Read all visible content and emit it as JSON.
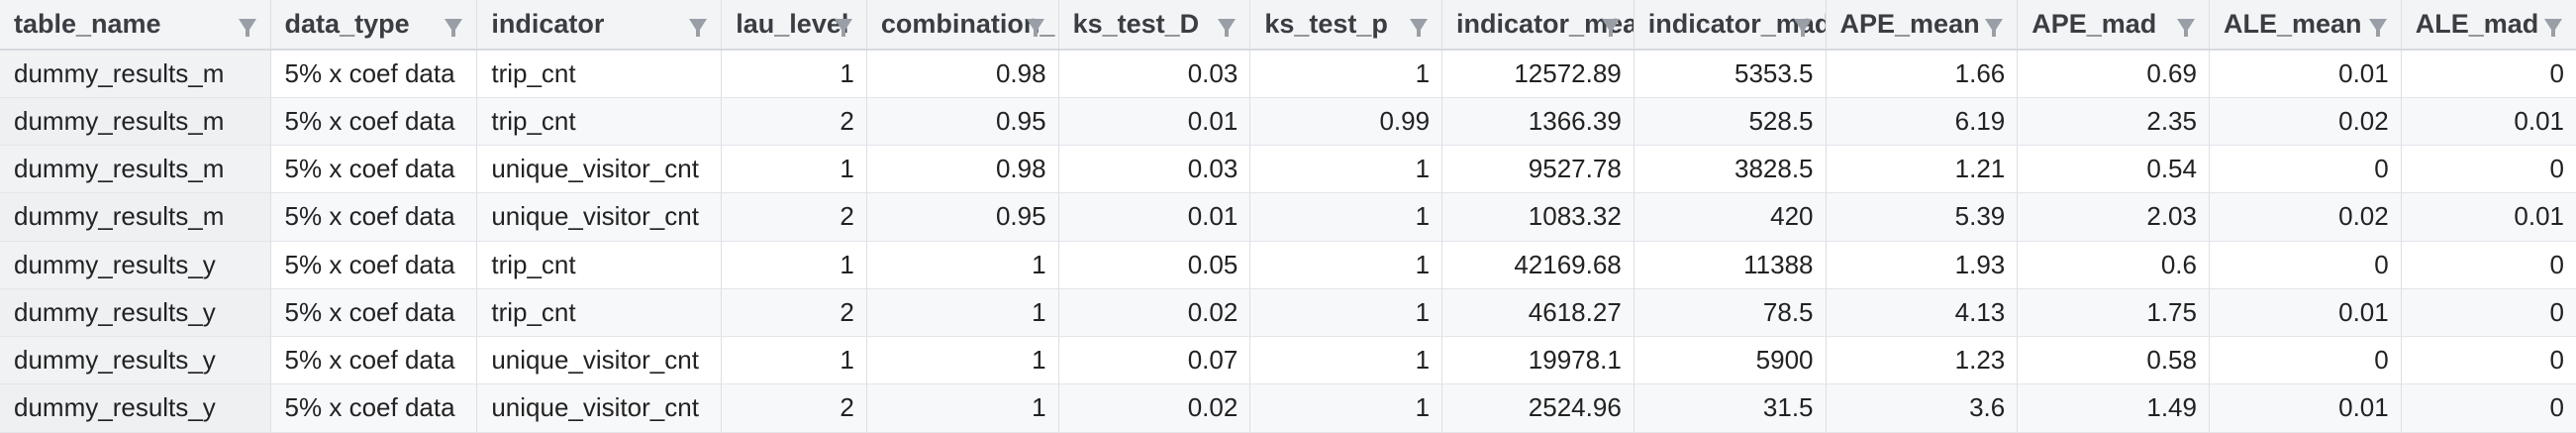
{
  "table": {
    "columns": [
      {
        "label": "table_name",
        "align": "left"
      },
      {
        "label": "data_type",
        "align": "left"
      },
      {
        "label": "indicator",
        "align": "left"
      },
      {
        "label": "lau_level",
        "align": "right"
      },
      {
        "label": "combination_",
        "align": "right"
      },
      {
        "label": "ks_test_D",
        "align": "right"
      },
      {
        "label": "ks_test_p",
        "align": "right"
      },
      {
        "label": "indicator_mea",
        "align": "right"
      },
      {
        "label": "indicator_mad",
        "align": "right"
      },
      {
        "label": "APE_mean",
        "align": "right"
      },
      {
        "label": "APE_mad",
        "align": "right"
      },
      {
        "label": "ALE_mean",
        "align": "right"
      },
      {
        "label": "ALE_mad",
        "align": "right"
      }
    ],
    "rows": [
      [
        "dummy_results_m",
        "5% x coef data",
        "trip_cnt",
        "1",
        "0.98",
        "0.03",
        "1",
        "12572.89",
        "5353.5",
        "1.66",
        "0.69",
        "0.01",
        "0"
      ],
      [
        "dummy_results_m",
        "5% x coef data",
        "trip_cnt",
        "2",
        "0.95",
        "0.01",
        "0.99",
        "1366.39",
        "528.5",
        "6.19",
        "2.35",
        "0.02",
        "0.01"
      ],
      [
        "dummy_results_m",
        "5% x coef data",
        "unique_visitor_cnt",
        "1",
        "0.98",
        "0.03",
        "1",
        "9527.78",
        "3828.5",
        "1.21",
        "0.54",
        "0",
        "0"
      ],
      [
        "dummy_results_m",
        "5% x coef data",
        "unique_visitor_cnt",
        "2",
        "0.95",
        "0.01",
        "1",
        "1083.32",
        "420",
        "5.39",
        "2.03",
        "0.02",
        "0.01"
      ],
      [
        "dummy_results_y",
        "5% x coef data",
        "trip_cnt",
        "1",
        "1",
        "0.05",
        "1",
        "42169.68",
        "11388",
        "1.93",
        "0.6",
        "0",
        "0"
      ],
      [
        "dummy_results_y",
        "5% x coef data",
        "trip_cnt",
        "2",
        "1",
        "0.02",
        "1",
        "4618.27",
        "78.5",
        "4.13",
        "1.75",
        "0.01",
        "0"
      ],
      [
        "dummy_results_y",
        "5% x coef data",
        "unique_visitor_cnt",
        "1",
        "1",
        "0.07",
        "1",
        "19978.1",
        "5900",
        "1.23",
        "0.58",
        "0",
        "0"
      ],
      [
        "dummy_results_y",
        "5% x coef data",
        "unique_visitor_cnt",
        "2",
        "1",
        "0.02",
        "1",
        "2524.96",
        "31.5",
        "3.6",
        "1.49",
        "0.01",
        "0"
      ]
    ]
  }
}
